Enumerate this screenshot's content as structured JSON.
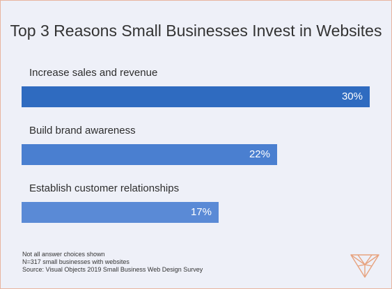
{
  "chart_data": {
    "type": "bar",
    "orientation": "horizontal",
    "title": "Top 3 Reasons Small Businesses Invest in Websites",
    "categories": [
      "Increase sales and revenue",
      "Build brand awareness",
      "Establish customer relationships"
    ],
    "values": [
      30,
      22,
      17
    ],
    "value_labels": [
      "30%",
      "22%",
      "17%"
    ],
    "xlim": [
      0,
      30
    ],
    "grid": false,
    "colors": [
      "#2f6bc0",
      "#4a7fd0",
      "#5a8ad6"
    ]
  },
  "notes": [
    "Not all answer choices shown",
    "N=317 small businesses with websites",
    "Source: Visual Objects 2019 Small Business Web Design Survey"
  ],
  "logo": {
    "icon": "visual-objects-v-logo",
    "color": "#e7a27e"
  }
}
